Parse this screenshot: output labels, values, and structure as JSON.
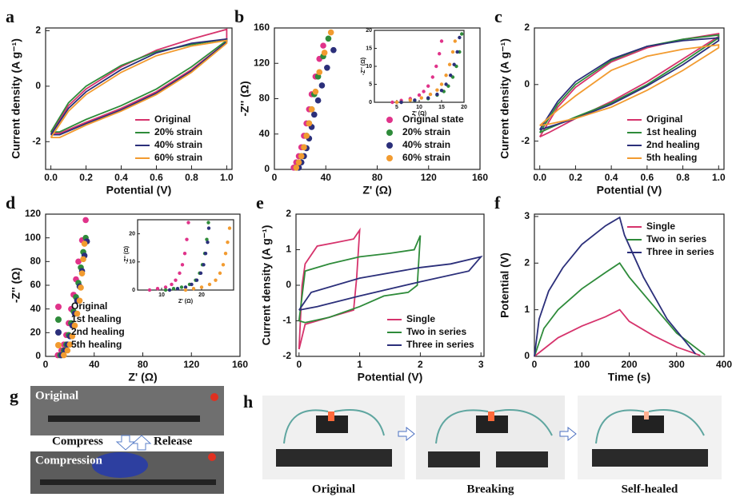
{
  "chart_data": [
    {
      "type": "line",
      "panel_label": "a",
      "xlabel": "Potential (V)",
      "ylabel": "Current density (A g⁻¹)",
      "legend": "lower right",
      "xlim": [
        -0.03,
        1.03
      ],
      "ylim": [
        -3,
        2.1
      ],
      "xticks": [
        {
          "value": 0,
          "label": "0.0"
        },
        0.2,
        0.4,
        0.6,
        0.8,
        {
          "value": 1,
          "label": "1.0"
        }
      ],
      "yticks": [
        -2,
        0,
        2
      ],
      "series": [
        {
          "name": "Original",
          "color": "#d6336c",
          "x": [
            0,
            0.1,
            0.2,
            0.4,
            0.6,
            0.8,
            1.0,
            1.0,
            0.8,
            0.6,
            0.4,
            0.2,
            0.05,
            0
          ],
          "values": [
            -1.7,
            -0.7,
            -0.1,
            0.7,
            1.3,
            1.7,
            2.05,
            1.6,
            0.6,
            -0.2,
            -0.8,
            -1.3,
            -1.7,
            -1.7
          ]
        },
        {
          "name": "20% strain",
          "color": "#2e8b3a",
          "x": [
            0,
            0.1,
            0.2,
            0.4,
            0.6,
            0.8,
            1.0,
            1.0,
            0.8,
            0.6,
            0.4,
            0.2,
            0.05,
            0
          ],
          "values": [
            -1.65,
            -0.6,
            0,
            0.75,
            1.25,
            1.5,
            1.7,
            1.65,
            0.7,
            -0.1,
            -0.7,
            -1.2,
            -1.65,
            -1.65
          ]
        },
        {
          "name": "40% strain",
          "color": "#2b2f7a",
          "x": [
            0,
            0.1,
            0.2,
            0.4,
            0.6,
            0.8,
            1.0,
            1.0,
            0.8,
            0.6,
            0.4,
            0.2,
            0.05,
            0
          ],
          "values": [
            -1.75,
            -0.8,
            -0.2,
            0.6,
            1.2,
            1.55,
            1.7,
            1.6,
            0.55,
            -0.25,
            -0.85,
            -1.35,
            -1.75,
            -1.75
          ]
        },
        {
          "name": "60% strain",
          "color": "#f29b30",
          "x": [
            0,
            0.1,
            0.2,
            0.4,
            0.6,
            0.8,
            1.0,
            1.0,
            0.8,
            0.6,
            0.4,
            0.2,
            0.05,
            0
          ],
          "values": [
            -1.85,
            -0.9,
            -0.3,
            0.5,
            1.1,
            1.45,
            1.65,
            1.55,
            0.5,
            -0.3,
            -0.9,
            -1.4,
            -1.85,
            -1.85
          ]
        }
      ]
    },
    {
      "type": "scatter",
      "panel_label": "b",
      "xlabel": "Z' (Ω)",
      "ylabel": "-Z'' (Ω)",
      "legend": "lower right",
      "xlim": [
        0,
        160
      ],
      "ylim": [
        0,
        160
      ],
      "xticks": [
        0,
        40,
        80,
        120,
        160
      ],
      "yticks": [
        0,
        40,
        80,
        120,
        160
      ],
      "series": [
        {
          "name": "Original state",
          "color": "#e0338a",
          "x": [
            15,
            17,
            19,
            21,
            23,
            25,
            27,
            29,
            32,
            35,
            38
          ],
          "values": [
            2,
            8,
            15,
            25,
            38,
            52,
            68,
            85,
            105,
            125,
            140
          ]
        },
        {
          "name": "20% strain",
          "color": "#2e8b3a",
          "x": [
            17,
            19,
            21,
            23,
            25,
            27,
            29,
            31,
            34,
            38,
            42
          ],
          "values": [
            2,
            8,
            15,
            25,
            38,
            52,
            68,
            85,
            105,
            128,
            148
          ]
        },
        {
          "name": "40% strain",
          "color": "#2b2f7a",
          "x": [
            19,
            21,
            23,
            25,
            27,
            29,
            31,
            34,
            37,
            41,
            46
          ],
          "values": [
            2,
            8,
            15,
            24,
            35,
            48,
            62,
            78,
            95,
            115,
            135
          ]
        },
        {
          "name": "60% strain",
          "color": "#f29b30",
          "x": [
            17,
            19,
            21,
            23,
            25,
            27,
            29,
            32,
            35,
            39,
            44
          ],
          "values": [
            2,
            8,
            15,
            25,
            38,
            52,
            68,
            88,
            110,
            132,
            155
          ]
        }
      ]
    },
    {
      "type": "scatter",
      "xlabel": "Z' (Ω)",
      "ylabel": "-Z'' (Ω)",
      "xlim": [
        0,
        20
      ],
      "ylim": [
        0,
        20
      ],
      "xticks": [
        5,
        10,
        15,
        20
      ],
      "yticks": [
        0,
        5,
        10,
        15,
        20
      ],
      "series": [
        {
          "color": "#e0338a",
          "x": [
            4,
            6,
            8,
            10,
            11,
            12,
            13,
            13.8,
            14.5,
            15
          ],
          "values": [
            0,
            0.5,
            1,
            2,
            3,
            4.5,
            7,
            10,
            13.5,
            17
          ]
        },
        {
          "color": "#2e8b3a",
          "x": [
            6,
            9,
            12,
            14,
            15.5,
            16.5,
            17.5,
            18.3,
            19,
            19.5
          ],
          "values": [
            0,
            0.5,
            1,
            2,
            3,
            4.5,
            7,
            10,
            14,
            19
          ]
        },
        {
          "color": "#2b2f7a",
          "x": [
            6,
            9,
            12,
            14,
            15,
            16,
            17,
            17.8,
            18.5,
            19
          ],
          "values": [
            0,
            0.6,
            1.2,
            2.2,
            3.3,
            5,
            7.5,
            10.5,
            14,
            18
          ]
        },
        {
          "color": "#f29b30",
          "x": [
            5,
            8,
            10.5,
            12.5,
            14,
            15,
            16,
            16.8,
            17.5,
            18
          ],
          "values": [
            0,
            0.6,
            1.2,
            2.2,
            3.4,
            5,
            7.5,
            10.5,
            14,
            17
          ]
        }
      ]
    },
    {
      "type": "line",
      "panel_label": "c",
      "xlabel": "Potential (V)",
      "ylabel": "Current density (A g⁻¹)",
      "legend": "lower right",
      "xlim": [
        -0.03,
        1.03
      ],
      "ylim": [
        -3,
        2.0
      ],
      "xticks": [
        {
          "value": 0,
          "label": "0.0"
        },
        0.2,
        0.4,
        0.6,
        0.8,
        {
          "value": 1,
          "label": "1.0"
        }
      ],
      "yticks": [
        -2,
        0,
        2
      ],
      "series": [
        {
          "name": "Original",
          "color": "#d6336c",
          "x": [
            0,
            0.1,
            0.2,
            0.4,
            0.6,
            0.8,
            1.0,
            1.0,
            0.8,
            0.6,
            0.4,
            0.2,
            0.05,
            0
          ],
          "values": [
            -1.85,
            -0.8,
            -0.1,
            0.8,
            1.3,
            1.6,
            1.8,
            1.7,
            0.9,
            0.1,
            -0.6,
            -1.2,
            -1.7,
            -1.85
          ]
        },
        {
          "name": "1st healing",
          "color": "#2e8b3a",
          "x": [
            0,
            0.1,
            0.2,
            0.4,
            0.6,
            0.8,
            1.0,
            1.0,
            0.8,
            0.6,
            0.4,
            0.2,
            0.05,
            0
          ],
          "values": [
            -1.7,
            -0.7,
            0,
            0.85,
            1.35,
            1.6,
            1.75,
            1.65,
            0.8,
            0,
            -0.65,
            -1.15,
            -1.55,
            -1.7
          ]
        },
        {
          "name": "2nd healing",
          "color": "#2b2f7a",
          "x": [
            0,
            0.1,
            0.2,
            0.4,
            0.6,
            0.8,
            1.0,
            1.0,
            0.8,
            0.6,
            0.4,
            0.2,
            0.05,
            0
          ],
          "values": [
            -1.6,
            -0.6,
            0.1,
            0.9,
            1.35,
            1.55,
            1.65,
            1.55,
            0.7,
            -0.05,
            -0.7,
            -1.2,
            -1.5,
            -1.6
          ]
        },
        {
          "name": "5th healing",
          "color": "#f29b30",
          "x": [
            0,
            0.1,
            0.2,
            0.4,
            0.6,
            0.8,
            1.0,
            1.0,
            0.8,
            0.6,
            0.4,
            0.2,
            0.05,
            0
          ],
          "values": [
            -1.45,
            -0.9,
            -0.4,
            0.5,
            1.0,
            1.25,
            1.4,
            1.3,
            0.5,
            -0.2,
            -0.8,
            -1.2,
            -1.4,
            -1.45
          ]
        }
      ]
    },
    {
      "type": "scatter",
      "panel_label": "d",
      "xlabel": "Z' (Ω)",
      "ylabel": "-Z'' (Ω)",
      "legend": "lower left",
      "xlim": [
        0,
        160
      ],
      "ylim": [
        0,
        120
      ],
      "xticks": [
        0,
        40,
        80,
        120,
        160
      ],
      "yticks": [
        0,
        20,
        40,
        60,
        80,
        100,
        120
      ],
      "series": [
        {
          "name": "Original",
          "color": "#e0338a",
          "x": [
            10,
            13,
            15,
            17,
            19,
            21,
            23,
            25,
            27,
            30,
            33
          ],
          "values": [
            1,
            5,
            10,
            18,
            28,
            40,
            52,
            65,
            80,
            98,
            115
          ]
        },
        {
          "name": "1st healing",
          "color": "#2e8b3a",
          "x": [
            12,
            15,
            17,
            19,
            21,
            23,
            25,
            27,
            29,
            31,
            33
          ],
          "values": [
            1,
            5,
            10,
            18,
            28,
            38,
            50,
            62,
            75,
            88,
            100
          ]
        },
        {
          "name": "2nd healing",
          "color": "#2b2f7a",
          "x": [
            13,
            16,
            18,
            20,
            22,
            24,
            26,
            28,
            30,
            32,
            34
          ],
          "values": [
            1,
            5,
            10,
            17,
            26,
            36,
            47,
            59,
            72,
            85,
            97
          ]
        },
        {
          "name": "5th healing",
          "color": "#f29b30",
          "x": [
            15,
            18,
            20,
            22,
            24,
            26,
            28,
            29,
            30,
            31,
            32
          ],
          "values": [
            1,
            5,
            10,
            17,
            26,
            36,
            47,
            58,
            70,
            82,
            95
          ]
        }
      ]
    },
    {
      "type": "scatter",
      "xlabel": "Z' (Ω)",
      "ylabel": "-Z'' (Ω)",
      "xlim": [
        4,
        28
      ],
      "ylim": [
        0,
        25
      ],
      "xticks": [
        10,
        20
      ],
      "yticks": [
        0,
        10,
        20
      ],
      "series": [
        {
          "color": "#e0338a",
          "x": [
            7,
            9,
            11,
            12.5,
            13.5,
            14.5,
            15.2,
            15.8,
            16.3,
            16.7
          ],
          "values": [
            0,
            0.5,
            1,
            2,
            3.5,
            6,
            9,
            13,
            18,
            24
          ]
        },
        {
          "color": "#2e8b3a",
          "x": [
            11,
            13,
            15,
            17,
            18.5,
            19.5,
            20.2,
            20.8,
            21.3,
            21.7
          ],
          "values": [
            0,
            0.5,
            1,
            2,
            3.5,
            6,
            9,
            13,
            18,
            24
          ]
        },
        {
          "color": "#2b2f7a",
          "x": [
            12,
            14,
            16,
            17.5,
            18.8,
            19.8,
            20.5,
            21,
            21.5,
            21.8
          ],
          "values": [
            0,
            0.5,
            1,
            2,
            3.5,
            6,
            9,
            13,
            17,
            22
          ]
        },
        {
          "color": "#f29b30",
          "x": [
            16,
            18,
            20,
            22,
            23.5,
            24.6,
            25.4,
            26,
            26.5,
            27
          ],
          "values": [
            0,
            0.5,
            1,
            2,
            3.5,
            6,
            9,
            13,
            17,
            22
          ]
        }
      ]
    },
    {
      "type": "line",
      "panel_label": "e",
      "xlabel": "Potential (V)",
      "ylabel": "Current density (A g⁻¹)",
      "legend": "lower right",
      "xlim": [
        -0.05,
        3.05
      ],
      "ylim": [
        -2,
        2
      ],
      "xticks": [
        0,
        1,
        2,
        3
      ],
      "yticks": [
        -2,
        -1,
        0,
        1,
        2
      ],
      "series": [
        {
          "name": "Single",
          "color": "#d6336c",
          "x": [
            0,
            0.05,
            0.1,
            0.3,
            0.6,
            0.9,
            1.0,
            0.95,
            0.9,
            0.6,
            0.3,
            0.1,
            0
          ],
          "values": [
            -1.8,
            0,
            0.6,
            1.1,
            1.2,
            1.3,
            1.55,
            0.2,
            -0.7,
            -0.85,
            -1.0,
            -1.1,
            -1.8
          ]
        },
        {
          "name": "Two in series",
          "color": "#2e8b3a",
          "x": [
            0,
            0.1,
            0.5,
            1.0,
            1.5,
            1.9,
            2.0,
            1.95,
            1.8,
            1.4,
            1.0,
            0.5,
            0.1,
            0
          ],
          "values": [
            -1.0,
            0.4,
            0.6,
            0.8,
            0.9,
            1.0,
            1.4,
            0,
            -0.2,
            -0.3,
            -0.6,
            -0.9,
            -1.05,
            -1.0
          ]
        },
        {
          "name": "Three in series",
          "color": "#2b2f7a",
          "x": [
            0,
            0.2,
            1,
            2,
            2.5,
            3,
            2.8,
            2,
            1,
            0.3,
            0
          ],
          "values": [
            -0.7,
            -0.2,
            0.2,
            0.5,
            0.6,
            0.8,
            0.4,
            0.1,
            -0.3,
            -0.6,
            -0.7
          ]
        }
      ]
    },
    {
      "type": "line",
      "panel_label": "f",
      "xlabel": "Time (s)",
      "ylabel": "Potential (V)",
      "legend": "upper right",
      "xlim": [
        0,
        400
      ],
      "ylim": [
        0,
        3.05
      ],
      "xticks": [
        0,
        100,
        200,
        300,
        400
      ],
      "yticks": [
        0,
        1,
        2,
        3
      ],
      "series": [
        {
          "name": "Single",
          "color": "#d6336c",
          "x": [
            0,
            50,
            100,
            150,
            180,
            200,
            250,
            300,
            350
          ],
          "values": [
            0,
            0.4,
            0.65,
            0.85,
            1.0,
            0.75,
            0.45,
            0.2,
            0.02
          ]
        },
        {
          "name": "Two in series",
          "color": "#2e8b3a",
          "x": [
            0,
            20,
            50,
            100,
            150,
            180,
            200,
            250,
            300,
            360
          ],
          "values": [
            0,
            0.6,
            1.0,
            1.45,
            1.8,
            2.0,
            1.7,
            1.1,
            0.5,
            0.03
          ]
        },
        {
          "name": "Three in series",
          "color": "#2b2f7a",
          "x": [
            0,
            10,
            30,
            60,
            100,
            150,
            180,
            190,
            230,
            280,
            340
          ],
          "values": [
            0,
            0.8,
            1.4,
            1.9,
            2.4,
            2.8,
            2.98,
            2.6,
            1.7,
            0.8,
            0.05
          ]
        }
      ]
    }
  ],
  "photos": [
    {
      "panel_label": "g",
      "labels": [
        "Original",
        "Compress",
        "Release",
        "Compression"
      ]
    },
    {
      "panel_label": "h",
      "labels": [
        "Original",
        "Breaking",
        "Self-healed"
      ]
    }
  ]
}
